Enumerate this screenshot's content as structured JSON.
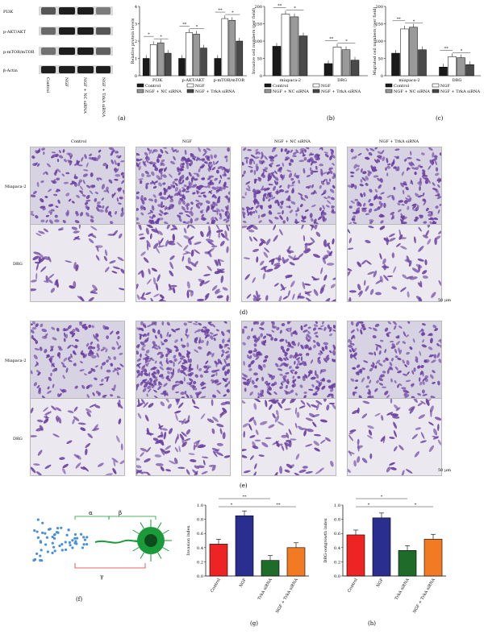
{
  "panels": {
    "a": "(a)",
    "b": "(b)",
    "c": "(c)",
    "d": "(d)",
    "e": "(e)",
    "f": "(f)",
    "g": "(g)",
    "h": "(h)"
  },
  "blot": {
    "row_labels": [
      "PI3K",
      "p-AKT/AKT",
      "p-mTOR/mTOR",
      "β-Actin"
    ],
    "lane_labels": [
      "Control",
      "NGF",
      "NGF + NC siRNA",
      "NGF + TrkA siRNA"
    ]
  },
  "micro": {
    "col_labels": [
      "Control",
      "NGF",
      "NGF + NC siRNA",
      "NGF + TrkA siRNA"
    ],
    "row_labels": [
      "Miapaca-2",
      "DRG"
    ],
    "scale_d": "50 μm",
    "scale_e": "50 μm"
  },
  "diagram": {
    "alpha": "α",
    "beta": "β",
    "gamma": "γ"
  },
  "colors": {
    "control": "#1a1a1a",
    "ngf": "#ffffff",
    "nc": "#9a9a9a",
    "trka": "#4a4a4a",
    "g_control": "#ee2424",
    "g_ngf": "#2a2f8f",
    "g_trka": "#1f6b2a",
    "g_nctrka": "#f27a22",
    "stain": "#6a3fa0",
    "dots": "#4a90d9",
    "neuron": "#1a9a3a"
  },
  "chart_data": [
    {
      "id": "a",
      "type": "bar",
      "ylabel": "Relative protein levels",
      "ylim": [
        0,
        4
      ],
      "yticks": [
        0,
        1,
        2,
        3,
        4
      ],
      "categories": [
        "PI3K",
        "p-AKT/AKT",
        "p-mTOR/mTOR"
      ],
      "series": [
        {
          "name": "Control",
          "values": [
            1.0,
            1.0,
            1.0
          ]
        },
        {
          "name": "NGF",
          "values": [
            1.8,
            2.5,
            3.3
          ]
        },
        {
          "name": "NGF + NC siRNA",
          "values": [
            1.9,
            2.4,
            3.2
          ]
        },
        {
          "name": "NGF + TrkA siRNA",
          "values": [
            1.3,
            1.6,
            2.0
          ]
        }
      ],
      "sig": [
        "*",
        "*",
        "**",
        "*",
        "**",
        "*"
      ]
    },
    {
      "id": "b",
      "type": "bar",
      "ylabel": "Invasive cell numbers (per field)",
      "ylim": [
        0,
        200
      ],
      "yticks": [
        0,
        50,
        100,
        150,
        200
      ],
      "categories": [
        "miapaca-2",
        "DRG"
      ],
      "series": [
        {
          "name": "Control",
          "values": [
            85,
            35
          ]
        },
        {
          "name": "NGF",
          "values": [
            178,
            83
          ]
        },
        {
          "name": "NGF + NC siRNA",
          "values": [
            170,
            75
          ]
        },
        {
          "name": "NGF + TrkA siRNA",
          "values": [
            115,
            45
          ]
        }
      ],
      "sig": [
        "**",
        "*",
        "**",
        "*"
      ]
    },
    {
      "id": "c",
      "type": "bar",
      "ylabel": "Migrated cell numbers (per field)",
      "ylim": [
        0,
        200
      ],
      "yticks": [
        0,
        50,
        100,
        150,
        200
      ],
      "categories": [
        "miapaca-2",
        "DRG"
      ],
      "series": [
        {
          "name": "Control",
          "values": [
            65,
            25
          ]
        },
        {
          "name": "NGF",
          "values": [
            135,
            55
          ]
        },
        {
          "name": "NGF + NC siRNA",
          "values": [
            140,
            52
          ]
        },
        {
          "name": "NGF + TrkA siRNA",
          "values": [
            75,
            32
          ]
        }
      ],
      "sig": [
        "**",
        "*",
        "**",
        "*"
      ]
    },
    {
      "id": "g",
      "type": "bar",
      "ylabel": "Invasion index",
      "ylim": [
        0,
        1.0
      ],
      "yticks": [
        0.0,
        0.2,
        0.4,
        0.6,
        0.8,
        1.0
      ],
      "categories": [
        "Control",
        "NGF",
        "TrkA siRNA",
        "NGF + TrkA siRNA"
      ],
      "values": [
        0.45,
        0.85,
        0.22,
        0.4
      ],
      "sig": [
        "**",
        "*",
        "**"
      ]
    },
    {
      "id": "h",
      "type": "bar",
      "ylabel": "DRG-outgrowth index",
      "ylim": [
        0,
        1.0
      ],
      "yticks": [
        0.0,
        0.2,
        0.4,
        0.6,
        0.8,
        1.0
      ],
      "categories": [
        "Control",
        "NGF",
        "TrkA siRNA",
        "NGF + TrkA siRNA"
      ],
      "values": [
        0.58,
        0.82,
        0.36,
        0.52
      ],
      "sig": [
        "*",
        "*",
        "*"
      ]
    }
  ]
}
